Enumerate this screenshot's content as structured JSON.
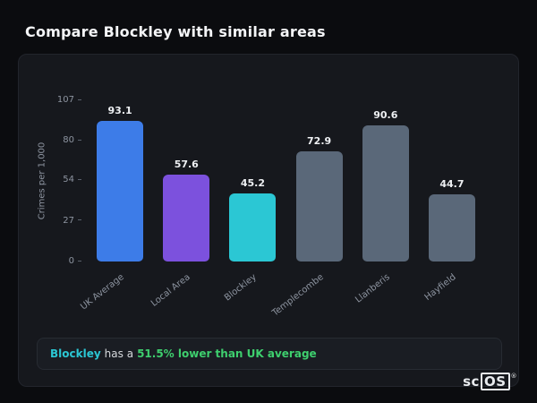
{
  "page": {
    "title": "Compare Blockley with similar areas"
  },
  "chart_data": {
    "type": "bar",
    "categories": [
      "UK Average",
      "Local Area",
      "Blockley",
      "Templecombe",
      "Llanberis",
      "Hayfield"
    ],
    "values": [
      93.1,
      57.6,
      45.2,
      72.9,
      90.6,
      44.7
    ],
    "bar_colors": [
      "#3d7ce8",
      "#7c51dd",
      "#2bc7d4",
      "#5a6879",
      "#5a6879",
      "#5a6879"
    ],
    "title": "",
    "xlabel": "",
    "ylabel": "Crimes per 1,000",
    "ylim": [
      0,
      107
    ],
    "yticks": [
      0,
      27,
      54,
      80,
      107
    ],
    "grid": false,
    "legend": false
  },
  "note": {
    "area_label": "Blockley",
    "middle_text": "has a",
    "highlight_text": "51.5% lower than UK average",
    "area_color": "#2bc7d4",
    "highlight_color": "#3ecf6e"
  },
  "logo": {
    "prefix": "sc",
    "boxed": "OS",
    "registered": "®"
  }
}
